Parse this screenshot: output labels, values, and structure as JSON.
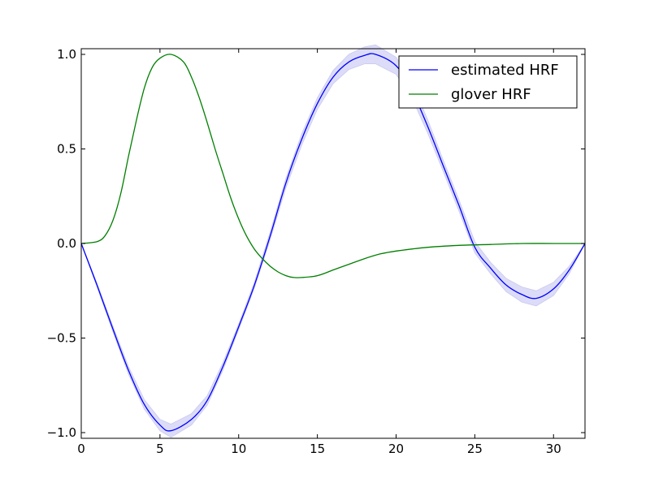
{
  "chart_data": {
    "type": "line",
    "title": "",
    "xlabel": "",
    "ylabel": "",
    "xlim": [
      0,
      32
    ],
    "ylim": [
      -1.03,
      1.03
    ],
    "x_ticks": [
      0,
      5,
      10,
      15,
      20,
      25,
      30
    ],
    "x_tick_labels": [
      "0",
      "5",
      "10",
      "15",
      "20",
      "25",
      "30"
    ],
    "y_ticks": [
      1.0,
      0.5,
      0.0,
      -0.5,
      -1.0
    ],
    "y_tick_labels": [
      "1.0",
      "0.5",
      "0.0",
      "−0.5",
      "−1.0"
    ],
    "grid": false,
    "legend": {
      "position": "top-right"
    },
    "series": [
      {
        "name": "estimated HRF",
        "color": "#0000ff",
        "band_color": "#dcdcf8",
        "x": [
          0,
          1,
          2,
          3,
          4,
          5,
          5.7,
          7,
          8,
          9,
          10,
          11,
          12,
          13,
          14,
          15,
          16,
          17,
          18,
          18.7,
          20,
          21,
          22,
          23,
          24,
          25,
          26,
          27,
          28,
          28.9,
          30,
          31,
          32
        ],
        "values": [
          0,
          -0.22,
          -0.45,
          -0.67,
          -0.85,
          -0.96,
          -0.99,
          -0.93,
          -0.83,
          -0.65,
          -0.44,
          -0.22,
          0.04,
          0.32,
          0.55,
          0.74,
          0.88,
          0.96,
          0.995,
          1.0,
          0.94,
          0.81,
          0.62,
          0.41,
          0.2,
          -0.02,
          -0.13,
          -0.22,
          -0.27,
          -0.29,
          -0.24,
          -0.14,
          0.0
        ],
        "band_halfwidth": [
          0,
          0.01,
          0.015,
          0.02,
          0.025,
          0.03,
          0.035,
          0.03,
          0.025,
          0.02,
          0.015,
          0.015,
          0.02,
          0.025,
          0.03,
          0.03,
          0.035,
          0.04,
          0.045,
          0.05,
          0.045,
          0.04,
          0.035,
          0.03,
          0.03,
          0.03,
          0.03,
          0.035,
          0.04,
          0.04,
          0.035,
          0.02,
          0.0
        ]
      },
      {
        "name": "glover HRF",
        "color": "#007f00",
        "x": [
          0,
          1,
          1.5,
          2,
          2.5,
          3,
          3.5,
          4,
          4.5,
          5,
          5.7,
          6.5,
          7,
          7.5,
          8,
          8.5,
          9,
          9.5,
          10,
          10.5,
          11,
          11.5,
          12,
          12.5,
          13,
          13.5,
          14,
          15,
          16,
          17,
          18,
          19,
          20,
          22,
          24,
          26,
          28,
          30,
          32
        ],
        "values": [
          0,
          0.01,
          0.04,
          0.12,
          0.26,
          0.46,
          0.65,
          0.82,
          0.93,
          0.98,
          1.0,
          0.96,
          0.88,
          0.77,
          0.64,
          0.5,
          0.37,
          0.24,
          0.13,
          0.04,
          -0.03,
          -0.08,
          -0.12,
          -0.15,
          -0.17,
          -0.18,
          -0.18,
          -0.17,
          -0.14,
          -0.11,
          -0.08,
          -0.055,
          -0.04,
          -0.02,
          -0.01,
          -0.005,
          0.0,
          0.0,
          0.0
        ]
      }
    ]
  }
}
